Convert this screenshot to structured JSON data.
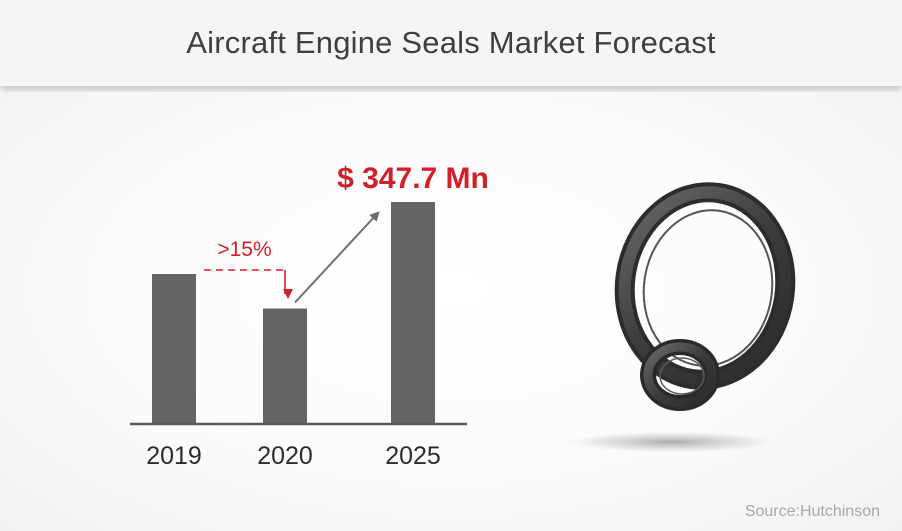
{
  "header": {
    "title": "Aircraft Engine Seals Market Forecast"
  },
  "chart_data": {
    "type": "bar",
    "title": "Aircraft Engine Seals Market Forecast",
    "categories": [
      "2019",
      "2020",
      "2025"
    ],
    "values": [
      100,
      77,
      148
    ],
    "ylim": [
      0,
      160
    ],
    "unit": "relative",
    "annotations": [
      {
        "text": ">15%",
        "from": "2019",
        "to": "2020",
        "meaning": "decline"
      },
      {
        "text": "$ 347.7 Mn",
        "target": "2025"
      }
    ],
    "colors": {
      "bar": "#646464",
      "accent": "#d0202a",
      "arrow": "#6e6e6e",
      "axis": "#5a5a5a"
    }
  },
  "footer": {
    "source": "Source:Hutchinson"
  }
}
